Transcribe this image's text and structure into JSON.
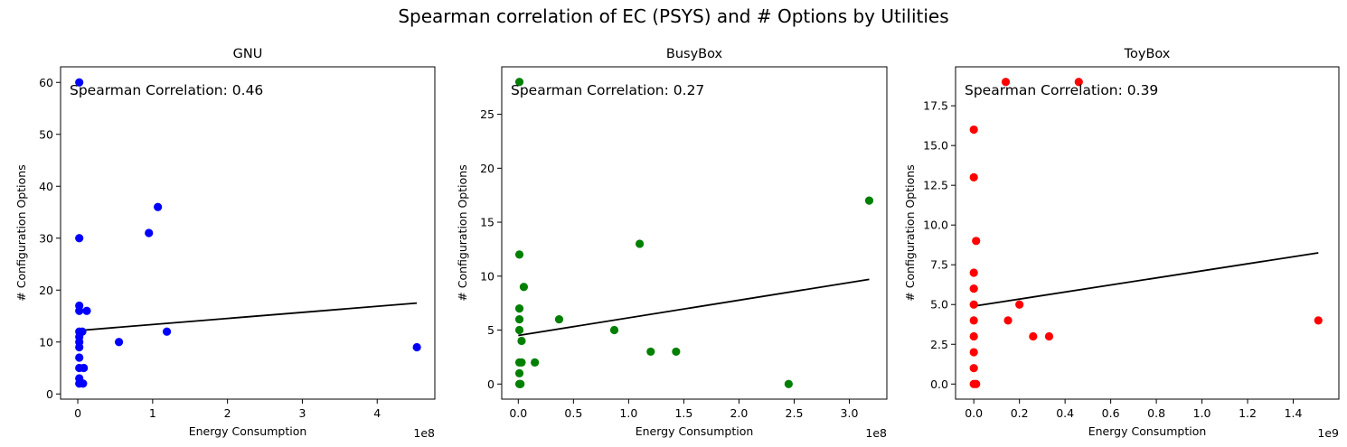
{
  "figure_title": "Spearman correlation of EC (PSYS) and # Options by Utilities",
  "chart_data": [
    {
      "type": "scatter",
      "title": "GNU",
      "xlabel": "Energy Consumption",
      "ylabel": "# Configuration Options",
      "x_offset_label": "1e8",
      "annotation": "Spearman Correlation: 0.46",
      "color": "#0000ff",
      "xlim": [
        -0.23,
        4.77
      ],
      "ylim": [
        -1,
        63
      ],
      "xticks": [
        0,
        1,
        2,
        3,
        4
      ],
      "xtick_labels": [
        "0",
        "1",
        "2",
        "3",
        "4"
      ],
      "yticks": [
        0,
        10,
        20,
        30,
        40,
        50,
        60
      ],
      "ytick_labels": [
        "0",
        "10",
        "20",
        "30",
        "40",
        "50",
        "60"
      ],
      "points": [
        [
          0.02,
          60
        ],
        [
          0.02,
          30
        ],
        [
          0.02,
          17
        ],
        [
          0.02,
          16
        ],
        [
          0.02,
          12
        ],
        [
          0.02,
          11
        ],
        [
          0.02,
          10
        ],
        [
          0.02,
          9
        ],
        [
          0.02,
          7
        ],
        [
          0.02,
          5
        ],
        [
          0.02,
          3
        ],
        [
          0.02,
          2
        ],
        [
          0.06,
          12
        ],
        [
          0.07,
          2
        ],
        [
          0.08,
          5
        ],
        [
          0.12,
          16
        ],
        [
          0.55,
          10
        ],
        [
          0.95,
          31
        ],
        [
          1.07,
          36
        ],
        [
          1.19,
          12
        ],
        [
          4.53,
          9
        ]
      ],
      "trendline": [
        [
          0.0,
          12.2
        ],
        [
          4.53,
          17.5
        ]
      ]
    },
    {
      "type": "scatter",
      "title": "BusyBox",
      "xlabel": "Energy Consumption",
      "ylabel": "# Configuration Options",
      "x_offset_label": "1e8",
      "annotation": "Spearman Correlation: 0.27",
      "color": "#008000",
      "xlim": [
        -0.15,
        3.34
      ],
      "ylim": [
        -1.4,
        29.4
      ],
      "xticks": [
        0,
        0.5,
        1.0,
        1.5,
        2.0,
        2.5,
        3.0
      ],
      "xtick_labels": [
        "0.0",
        "0.5",
        "1.0",
        "1.5",
        "2.0",
        "2.5",
        "3.0"
      ],
      "yticks": [
        0,
        5,
        10,
        15,
        20,
        25
      ],
      "ytick_labels": [
        "0",
        "5",
        "10",
        "15",
        "20",
        "25"
      ],
      "points": [
        [
          0.01,
          28
        ],
        [
          0.01,
          12
        ],
        [
          0.01,
          7
        ],
        [
          0.01,
          6
        ],
        [
          0.01,
          5
        ],
        [
          0.01,
          2
        ],
        [
          0.01,
          1
        ],
        [
          0.01,
          0
        ],
        [
          0.02,
          0
        ],
        [
          0.03,
          2
        ],
        [
          0.03,
          4
        ],
        [
          0.05,
          9
        ],
        [
          0.15,
          2
        ],
        [
          0.37,
          6
        ],
        [
          0.87,
          5
        ],
        [
          1.1,
          13
        ],
        [
          1.2,
          3
        ],
        [
          1.43,
          3
        ],
        [
          2.45,
          0
        ],
        [
          3.18,
          17
        ]
      ],
      "trendline": [
        [
          0.0,
          4.5
        ],
        [
          3.18,
          9.7
        ]
      ]
    },
    {
      "type": "scatter",
      "title": "ToyBox",
      "xlabel": "Energy Consumption",
      "ylabel": "# Configuration Options",
      "x_offset_label": "1e9",
      "annotation": "Spearman Correlation: 0.39",
      "color": "#ff0000",
      "xlim": [
        -0.08,
        1.6
      ],
      "ylim": [
        -0.95,
        19.95
      ],
      "xticks": [
        0,
        0.2,
        0.4,
        0.6,
        0.8,
        1.0,
        1.2,
        1.4
      ],
      "xtick_labels": [
        "0.0",
        "0.2",
        "0.4",
        "0.6",
        "0.8",
        "1.0",
        "1.2",
        "1.4"
      ],
      "yticks": [
        0,
        2.5,
        5.0,
        7.5,
        10.0,
        12.5,
        15.0,
        17.5
      ],
      "ytick_labels": [
        "0.0",
        "2.5",
        "5.0",
        "7.5",
        "10.0",
        "12.5",
        "15.0",
        "17.5"
      ],
      "points": [
        [
          0.0,
          16
        ],
        [
          0.0,
          13
        ],
        [
          0.0,
          7
        ],
        [
          0.0,
          6
        ],
        [
          0.0,
          5
        ],
        [
          0.0,
          4
        ],
        [
          0.0,
          3
        ],
        [
          0.0,
          2
        ],
        [
          0.0,
          1
        ],
        [
          0.0,
          0
        ],
        [
          0.01,
          0
        ],
        [
          0.01,
          9
        ],
        [
          0.14,
          19
        ],
        [
          0.15,
          4
        ],
        [
          0.2,
          5
        ],
        [
          0.26,
          3
        ],
        [
          0.33,
          3
        ],
        [
          0.46,
          19
        ],
        [
          1.51,
          4
        ]
      ],
      "trendline": [
        [
          0.0,
          4.9
        ],
        [
          1.51,
          8.25
        ]
      ]
    }
  ]
}
